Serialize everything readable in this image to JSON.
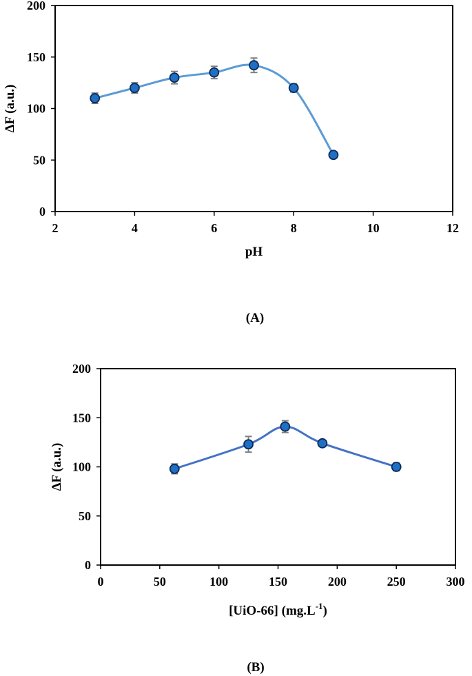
{
  "chart_data": [
    {
      "type": "line",
      "panel_label": "(A)",
      "xlabel": "pH",
      "ylabel": "ΔF (a.u.)",
      "xlim": [
        2,
        12
      ],
      "ylim": [
        0,
        200
      ],
      "xticks": [
        "2",
        "4",
        "6",
        "8",
        "10",
        "12"
      ],
      "yticks": [
        "0",
        "50",
        "100",
        "150",
        "200"
      ],
      "grid": false,
      "line_color": "#5B9BD5",
      "marker_color": "#1F6FC5",
      "smooth": true,
      "series": [
        {
          "x": [
            3,
            4,
            5,
            6,
            7,
            8,
            9
          ],
          "values": [
            110,
            120,
            130,
            135,
            142,
            120,
            55
          ],
          "error": [
            5,
            5,
            6,
            6,
            7,
            4,
            2
          ]
        }
      ]
    },
    {
      "type": "line",
      "panel_label": "(B)",
      "xlabel": "[UiO-66] (mg.L",
      "xlabel_sup": "-1",
      "xlabel_end": ")",
      "ylabel": "ΔF (a.u.)",
      "xlim": [
        0,
        300
      ],
      "ylim": [
        0,
        200
      ],
      "xticks": [
        "0",
        "50",
        "100",
        "150",
        "200",
        "250",
        "300"
      ],
      "yticks": [
        "0",
        "50",
        "100",
        "150",
        "200"
      ],
      "grid": false,
      "line_color": "#4472C4",
      "marker_color": "#1F6FC5",
      "smooth": true,
      "series": [
        {
          "x": [
            62.5,
            125,
            156,
            187.5,
            250
          ],
          "values": [
            98,
            123,
            141,
            124,
            100
          ],
          "error": [
            5,
            8,
            6,
            3,
            4
          ]
        }
      ]
    }
  ]
}
